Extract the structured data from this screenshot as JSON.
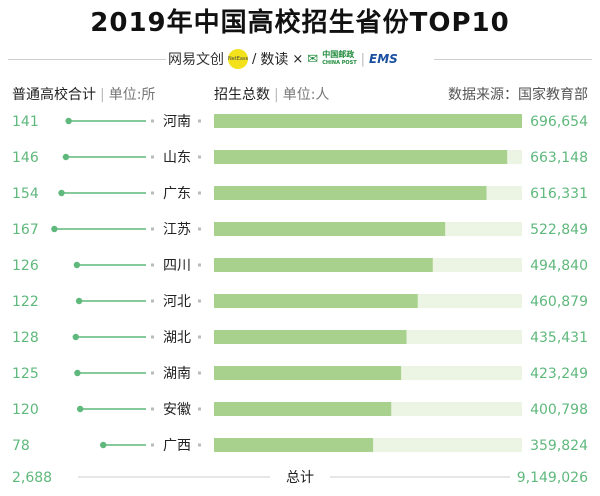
{
  "title": "2019年中国高校招生省份TOP10",
  "brands": {
    "netease": "网易文创",
    "netease_badge": "NetEase",
    "shudu": "数读",
    "cross": "×",
    "china_post_cn": "中国邮政",
    "china_post_en": "CHINA POST",
    "ems": "EMS"
  },
  "headers": {
    "left_label": "普通高校合计",
    "left_unit": "单位:所",
    "right_label": "招生总数",
    "right_unit": "单位:人",
    "source": "数据来源：国家教育部"
  },
  "colors": {
    "bar": "#a9d18e",
    "track": "#ecf4e3",
    "accent": "#5fb87c",
    "lollipop": "#5fb87c"
  },
  "chart_data": {
    "type": "bar",
    "categories": [
      "河南",
      "山东",
      "广东",
      "江苏",
      "四川",
      "河北",
      "湖北",
      "湖南",
      "安徽",
      "广西"
    ],
    "series": [
      {
        "values": [
          141,
          146,
          154,
          167,
          126,
          122,
          128,
          125,
          120,
          78
        ]
      },
      {
        "values": [
          696654,
          663148,
          616331,
          522849,
          494840,
          460879,
          435431,
          423249,
          400798,
          359824
        ]
      }
    ],
    "left_labels": [
      "141",
      "146",
      "154",
      "167",
      "126",
      "122",
      "128",
      "125",
      "120",
      "78"
    ],
    "right_labels": [
      "696,654",
      "663,148",
      "616,331",
      "522,849",
      "494,840",
      "460,879",
      "435,431",
      "423,249",
      "400,798",
      "359,824"
    ],
    "xlim_left": [
      0,
      175
    ],
    "xlim_right": [
      0,
      696654
    ],
    "totals": {
      "label": "总计",
      "schools": "2,688",
      "enrollment": "9,149,026"
    }
  }
}
